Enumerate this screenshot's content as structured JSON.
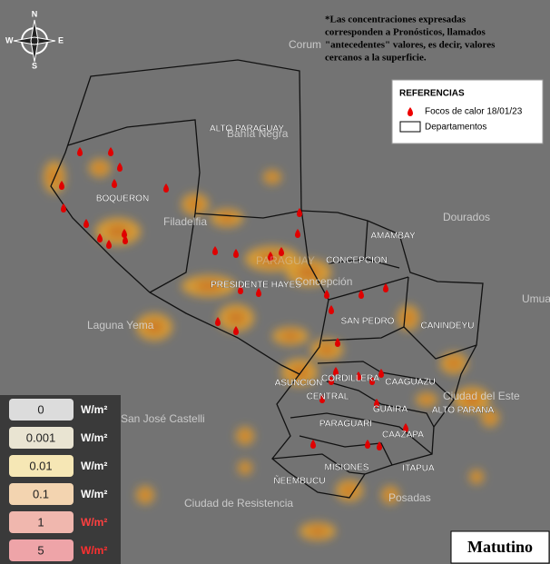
{
  "compass": {
    "n": "N",
    "s": "S",
    "e": "E",
    "w": "W"
  },
  "note": [
    "*Las concentraciones expresadas",
    "corresponden a Pronósticos, llamados",
    "\"antecedentes\" valores, es decir, valores",
    "cercanos a la superficie."
  ],
  "legend": {
    "title": "REFERENCIAS",
    "items": [
      "Focos de calor 18/01/23",
      "Departamentos"
    ]
  },
  "departments": [
    "ALTO PARAGUAY",
    "BOQUERON",
    "PRESIDENTE HAYES",
    "AMAMBAY",
    "CONCEPCION",
    "SAN PEDRO",
    "CANINDEYU",
    "CORDILLERA",
    "ASUNCION",
    "CENTRAL",
    "CAAGUAZU",
    "GUAIRA",
    "ALTO PARANA",
    "PARAGUARI",
    "CAAZAPA",
    "MISIONES",
    "ITAPUA",
    "ÑEEMBUCU"
  ],
  "places": [
    "Corum",
    "Bahía Negra",
    "Filadelfia",
    "Dourados",
    "PARAGUAY",
    "Concepción",
    "Laguna Yema",
    "Umua",
    "Ciudad del Este",
    "San José Castelli",
    "Ciudad de Resistencia",
    "Posadas"
  ],
  "scale": {
    "unit": "W/m²",
    "levels": [
      0,
      0.001,
      0.01,
      0.1,
      1,
      5
    ]
  },
  "period": "Matutino"
}
